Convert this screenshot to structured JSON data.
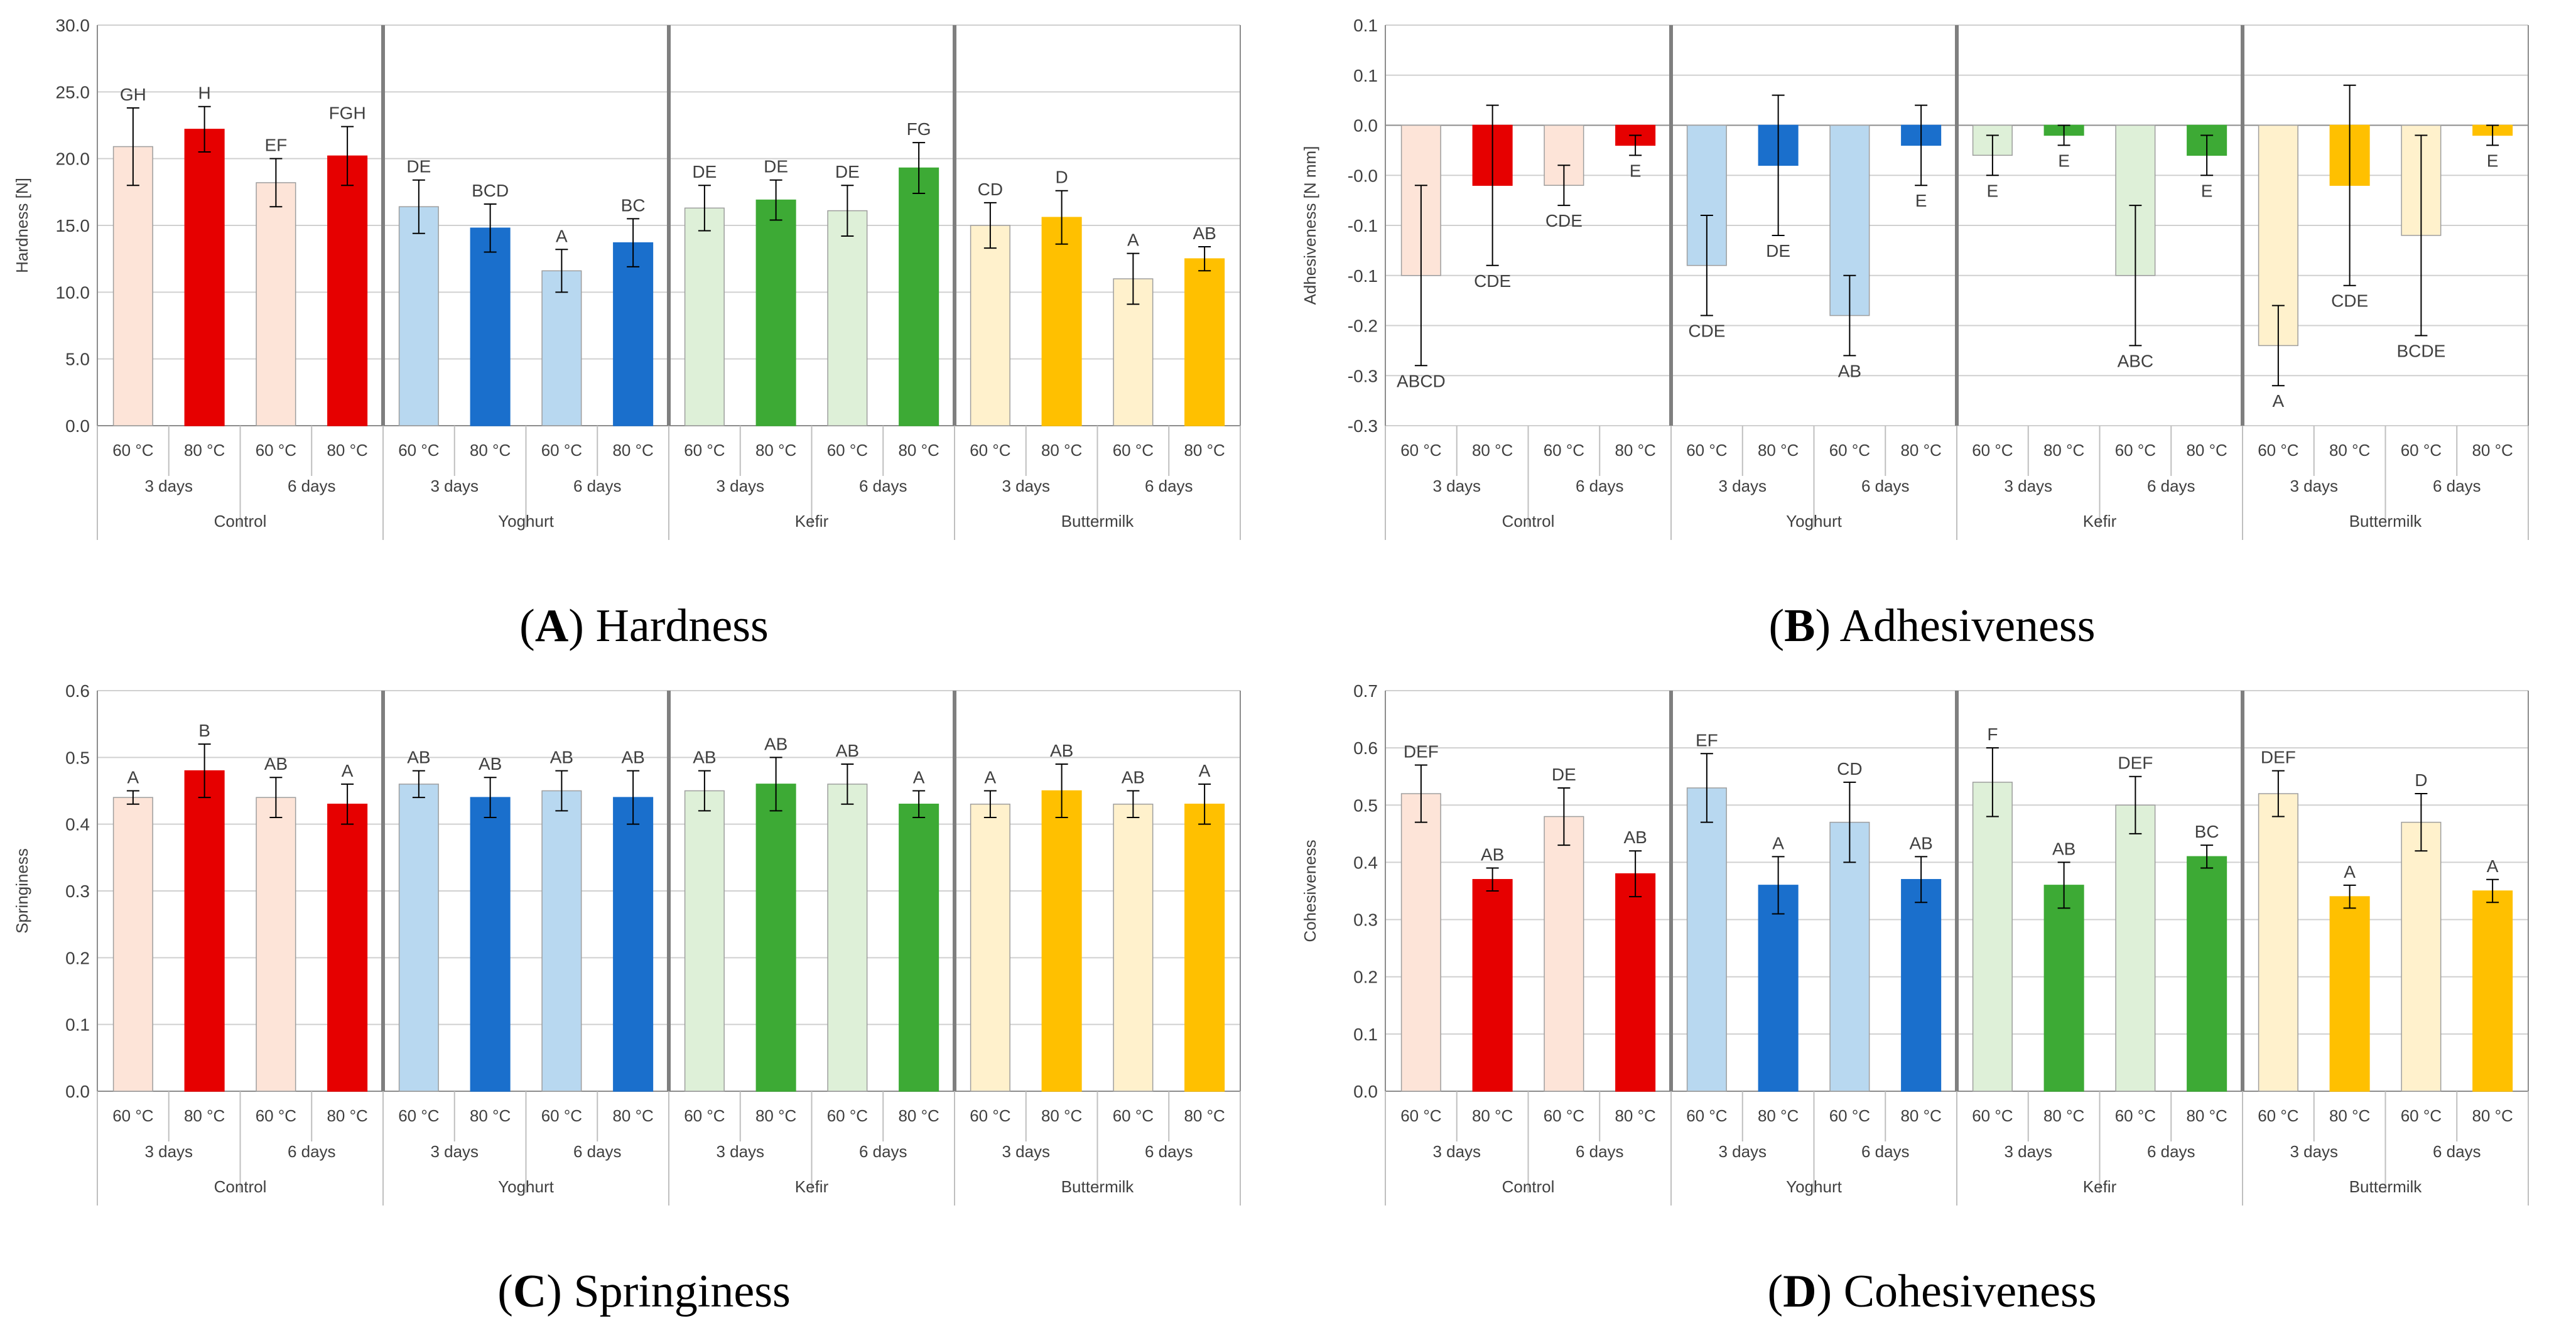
{
  "chart_data": [
    {
      "type": "bar",
      "panel_letter": "A",
      "caption": "Hardness",
      "ylabel": "Hardness [N]",
      "ylim": [
        0,
        30
      ],
      "ytick_step": 5,
      "ytick_decimals": 1,
      "groups": [
        "Control",
        "Yoghurt",
        "Kefir",
        "Buttermilk"
      ],
      "days": [
        "3 days",
        "6 days"
      ],
      "temps": [
        "60 °C",
        "80 °C"
      ],
      "group_colors": [
        {
          "light": "#FDE4D8",
          "dark": "#E60000"
        },
        {
          "light": "#B8D8F0",
          "dark": "#1A6FCC"
        },
        {
          "light": "#DEF0D8",
          "dark": "#3DAA35"
        },
        {
          "light": "#FFF1CC",
          "dark": "#FFC000"
        }
      ],
      "series": [
        {
          "group": "Control",
          "values": [
            20.9,
            22.2,
            18.2,
            20.2
          ],
          "errors": [
            2.9,
            1.7,
            1.8,
            2.2
          ],
          "letters": [
            "GH",
            "H",
            "EF",
            "FGH"
          ]
        },
        {
          "group": "Yoghurt",
          "values": [
            16.4,
            14.8,
            11.6,
            13.7
          ],
          "errors": [
            2.0,
            1.8,
            1.6,
            1.8
          ],
          "letters": [
            "DE",
            "BCD",
            "A",
            "BC"
          ]
        },
        {
          "group": "Kefir",
          "values": [
            16.3,
            16.9,
            16.1,
            19.3
          ],
          "errors": [
            1.7,
            1.5,
            1.9,
            1.9
          ],
          "letters": [
            "DE",
            "DE",
            "DE",
            "FG"
          ]
        },
        {
          "group": "Buttermilk",
          "values": [
            15.0,
            15.6,
            11.0,
            12.5
          ],
          "errors": [
            1.7,
            2.0,
            1.9,
            0.9
          ],
          "letters": [
            "CD",
            "D",
            "A",
            "AB"
          ]
        }
      ]
    },
    {
      "type": "bar",
      "panel_letter": "B",
      "caption": "Adhesiveness",
      "ylabel": "Adhesiveness [N mm]",
      "ylim": [
        -0.3,
        0.1
      ],
      "ytick_step": 0.05,
      "ytick_decimals": 1,
      "groups": [
        "Control",
        "Yoghurt",
        "Kefir",
        "Buttermilk"
      ],
      "days": [
        "3 days",
        "6 days"
      ],
      "temps": [
        "60 °C",
        "80 °C"
      ],
      "group_colors": [
        {
          "light": "#FDE4D8",
          "dark": "#E60000"
        },
        {
          "light": "#B8D8F0",
          "dark": "#1A6FCC"
        },
        {
          "light": "#DEF0D8",
          "dark": "#3DAA35"
        },
        {
          "light": "#FFF1CC",
          "dark": "#FFC000"
        }
      ],
      "series": [
        {
          "group": "Control",
          "values": [
            -0.15,
            -0.06,
            -0.06,
            -0.02
          ],
          "errors": [
            0.09,
            0.08,
            0.02,
            0.01
          ],
          "letters": [
            "ABCD",
            "CDE",
            "CDE",
            "E"
          ]
        },
        {
          "group": "Yoghurt",
          "values": [
            -0.14,
            -0.04,
            -0.19,
            -0.02
          ],
          "errors": [
            0.05,
            0.07,
            0.04,
            0.04
          ],
          "letters": [
            "CDE",
            "DE",
            "AB",
            "E"
          ]
        },
        {
          "group": "Kefir",
          "values": [
            -0.03,
            -0.01,
            -0.15,
            -0.03
          ],
          "errors": [
            0.02,
            0.01,
            0.07,
            0.02
          ],
          "letters": [
            "E",
            "E",
            "ABC",
            "E"
          ]
        },
        {
          "group": "Buttermilk",
          "values": [
            -0.22,
            -0.06,
            -0.11,
            -0.01
          ],
          "errors": [
            0.04,
            0.1,
            0.1,
            0.01
          ],
          "letters": [
            "A",
            "CDE",
            "BCDE",
            "E"
          ]
        }
      ]
    },
    {
      "type": "bar",
      "panel_letter": "C",
      "caption": "Springiness",
      "ylabel": "Springiness",
      "ylim": [
        0,
        0.6
      ],
      "ytick_step": 0.1,
      "ytick_decimals": 1,
      "groups": [
        "Control",
        "Yoghurt",
        "Kefir",
        "Buttermilk"
      ],
      "days": [
        "3 days",
        "6 days"
      ],
      "temps": [
        "60 °C",
        "80 °C"
      ],
      "group_colors": [
        {
          "light": "#FDE4D8",
          "dark": "#E60000"
        },
        {
          "light": "#B8D8F0",
          "dark": "#1A6FCC"
        },
        {
          "light": "#DEF0D8",
          "dark": "#3DAA35"
        },
        {
          "light": "#FFF1CC",
          "dark": "#FFC000"
        }
      ],
      "series": [
        {
          "group": "Control",
          "values": [
            0.44,
            0.48,
            0.44,
            0.43
          ],
          "errors": [
            0.01,
            0.04,
            0.03,
            0.03
          ],
          "letters": [
            "A",
            "B",
            "AB",
            "A"
          ]
        },
        {
          "group": "Yoghurt",
          "values": [
            0.46,
            0.44,
            0.45,
            0.44
          ],
          "errors": [
            0.02,
            0.03,
            0.03,
            0.04
          ],
          "letters": [
            "AB",
            "AB",
            "AB",
            "AB"
          ]
        },
        {
          "group": "Kefir",
          "values": [
            0.45,
            0.46,
            0.46,
            0.43
          ],
          "errors": [
            0.03,
            0.04,
            0.03,
            0.02
          ],
          "letters": [
            "AB",
            "AB",
            "AB",
            "A"
          ]
        },
        {
          "group": "Buttermilk",
          "values": [
            0.43,
            0.45,
            0.43,
            0.43
          ],
          "errors": [
            0.02,
            0.04,
            0.02,
            0.03
          ],
          "letters": [
            "A",
            "AB",
            "AB",
            "A"
          ]
        }
      ]
    },
    {
      "type": "bar",
      "panel_letter": "D",
      "caption": "Cohesiveness",
      "ylabel": "Cohesiveness",
      "ylim": [
        0,
        0.7
      ],
      "ytick_step": 0.1,
      "ytick_decimals": 1,
      "groups": [
        "Control",
        "Yoghurt",
        "Kefir",
        "Buttermilk"
      ],
      "days": [
        "3 days",
        "6 days"
      ],
      "temps": [
        "60 °C",
        "80 °C"
      ],
      "group_colors": [
        {
          "light": "#FDE4D8",
          "dark": "#E60000"
        },
        {
          "light": "#B8D8F0",
          "dark": "#1A6FCC"
        },
        {
          "light": "#DEF0D8",
          "dark": "#3DAA35"
        },
        {
          "light": "#FFF1CC",
          "dark": "#FFC000"
        }
      ],
      "series": [
        {
          "group": "Control",
          "values": [
            0.52,
            0.37,
            0.48,
            0.38
          ],
          "errors": [
            0.05,
            0.02,
            0.05,
            0.04
          ],
          "letters": [
            "DEF",
            "AB",
            "DE",
            "AB"
          ]
        },
        {
          "group": "Yoghurt",
          "values": [
            0.53,
            0.36,
            0.47,
            0.37
          ],
          "errors": [
            0.06,
            0.05,
            0.07,
            0.04
          ],
          "letters": [
            "EF",
            "A",
            "CD",
            "AB"
          ]
        },
        {
          "group": "Kefir",
          "values": [
            0.54,
            0.36,
            0.5,
            0.41
          ],
          "errors": [
            0.06,
            0.04,
            0.05,
            0.02
          ],
          "letters": [
            "F",
            "AB",
            "DEF",
            "BC"
          ]
        },
        {
          "group": "Buttermilk",
          "values": [
            0.52,
            0.34,
            0.47,
            0.35
          ],
          "errors": [
            0.04,
            0.02,
            0.05,
            0.02
          ],
          "letters": [
            "DEF",
            "A",
            "D",
            "A"
          ]
        }
      ]
    }
  ]
}
